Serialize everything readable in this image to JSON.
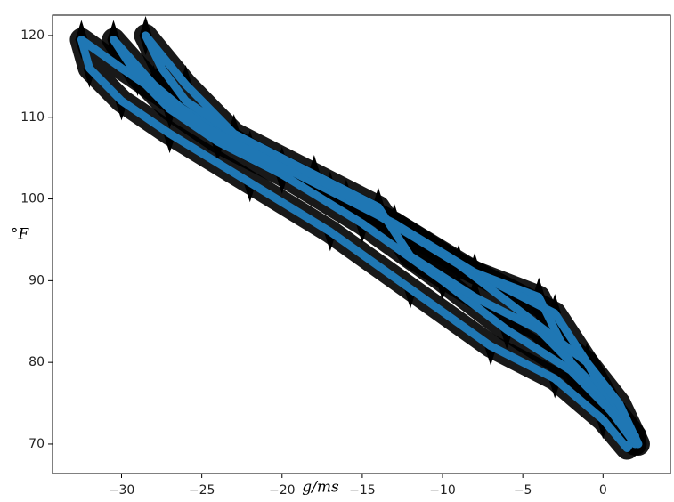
{
  "chart_data": {
    "type": "line",
    "xlabel": "g/ms",
    "ylabel": "°F",
    "xlim": [
      -34.3,
      4.2
    ],
    "ylim": [
      66.4,
      122.5
    ],
    "xticks": [
      {
        "value": -30,
        "label": "−30"
      },
      {
        "value": -25,
        "label": "−25"
      },
      {
        "value": -20,
        "label": "−20"
      },
      {
        "value": -15,
        "label": "−15"
      },
      {
        "value": -10,
        "label": "−10"
      },
      {
        "value": -5,
        "label": "−5"
      },
      0
    ],
    "yticks": [
      70,
      80,
      90,
      100,
      110,
      120
    ],
    "arrow_color": "#000000",
    "series": [
      {
        "color": "#1f77b4",
        "x": [
          -32.5,
          -32,
          -30,
          -27,
          -22,
          -17,
          -12,
          -7,
          -3,
          0,
          1.5,
          2,
          0,
          -2,
          -4,
          -8,
          -13,
          -17,
          -22,
          -27,
          -30,
          -32.5
        ],
        "values": [
          119.5,
          116,
          112,
          108,
          102,
          96,
          89,
          82,
          78,
          73,
          69.5,
          71,
          76,
          80,
          88,
          91,
          97,
          101,
          106,
          112,
          116,
          119.5
        ]
      },
      {
        "color": "#1f77b4",
        "x": [
          -30.5,
          -29,
          -27,
          -24,
          -20,
          -15,
          -10,
          -6,
          -2,
          0.5,
          2,
          1,
          -1,
          -3,
          -9,
          -13,
          -16,
          -20,
          -25,
          -28,
          -30.5
        ],
        "values": [
          119.5,
          115,
          111,
          107,
          103,
          97,
          90,
          84,
          79,
          74,
          70,
          73,
          80,
          86,
          92,
          97,
          100,
          104,
          109,
          114,
          119.5
        ]
      },
      {
        "color": "#1f77b4",
        "x": [
          -28.5,
          -27.5,
          -26,
          -23,
          -19,
          -14,
          -9,
          -5,
          -1,
          1,
          2.2,
          0.5,
          -2,
          -4,
          -8,
          -12,
          -14,
          -18,
          -23,
          -26,
          -28.5
        ],
        "values": [
          120,
          116,
          112,
          108,
          104,
          98,
          92,
          86,
          80,
          75,
          70,
          74,
          80,
          84,
          88,
          93,
          99,
          103,
          108,
          114,
          120
        ]
      }
    ]
  }
}
